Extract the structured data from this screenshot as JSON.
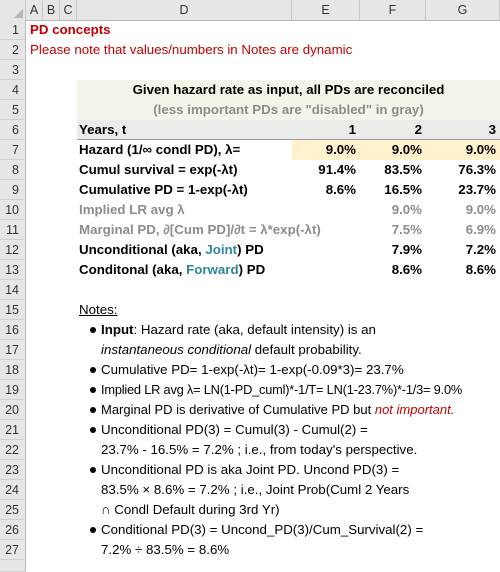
{
  "columns": [
    "A",
    "B",
    "C",
    "D",
    "E",
    "F",
    "G"
  ],
  "rows": [
    "1",
    "2",
    "3",
    "4",
    "5",
    "6",
    "7",
    "8",
    "9",
    "10",
    "11",
    "12",
    "13",
    "14",
    "15",
    "16",
    "17",
    "18",
    "19",
    "20",
    "21",
    "22",
    "23",
    "24",
    "25",
    "26",
    "27"
  ],
  "title": "PD concepts",
  "note_line": "Please note that values/numbers in Notes are dynamic",
  "table": {
    "heading": "Given hazard rate as input, all PDs are reconciled",
    "subheading": "(less important PDs are \"disabled\" in gray)",
    "years_label": "Years, t",
    "years": [
      "1",
      "2",
      "3"
    ],
    "hazard": {
      "label": "Hazard (1/∞ condl PD), λ=",
      "values": [
        "9.0%",
        "9.0%",
        "9.0%"
      ]
    },
    "survival": {
      "label": "Cumul survival = exp(-λt)",
      "values": [
        "91.4%",
        "83.5%",
        "76.3%"
      ]
    },
    "cumpd": {
      "label": "Cumulative PD = 1-exp(-λt)",
      "values": [
        "8.6%",
        "16.5%",
        "23.7%"
      ]
    },
    "implied": {
      "label": "Implied LR avg λ",
      "values": [
        "",
        "9.0%",
        "9.0%"
      ]
    },
    "marginal": {
      "label": "Marginal PD, ∂[Cum PD]/∂t = λ*exp(-λt)",
      "values": [
        "",
        "7.5%",
        "6.9%"
      ]
    },
    "uncond": {
      "label_pre": "Unconditional (aka, ",
      "label_em": "Joint",
      "label_post": ") PD",
      "values": [
        "",
        "7.9%",
        "7.2%"
      ]
    },
    "cond": {
      "label_pre": "Conditonal (aka, ",
      "label_em": "Forward",
      "label_post": ") PD",
      "values": [
        "",
        "8.6%",
        "8.6%"
      ]
    }
  },
  "notes": {
    "heading": "Notes:",
    "l16_b": "Input",
    "l16_rest": ": Hazard rate (aka, default intensity) is an",
    "l17_i": "instantaneous conditional",
    "l17_rest": " default probability.",
    "l18": "Cumulative PD= 1-exp(-λt)= 1-exp(-0.09*3)= 23.7%",
    "l19": "Implied LR avg λ= LN(1-PD_cuml)*-1/T= LN(1-23.7%)*-1/3= 9.0%",
    "l20_pre": "Marginal PD is derivative of Cumulative PD but ",
    "l20_em": "not important.",
    "l21": "Unconditional PD(3) = Cumul(3) - Cumul(2) =",
    "l22": "23.7% - 16.5% = 7.2% ; i.e., from today's perspective.",
    "l23": "Unconditional PD is aka Joint PD. Uncond PD(3) =",
    "l24": "83.5% × 8.6% = 7.2% ; i.e., Joint Prob(Cuml 2 Years",
    "l25": "∩ Condl Default during 3rd Yr)",
    "l26": "Conditional PD(3) = Uncond_PD(3)/Cum_Survival(2) =",
    "l27": "7.2% ÷ 83.5% = 8.6%"
  }
}
